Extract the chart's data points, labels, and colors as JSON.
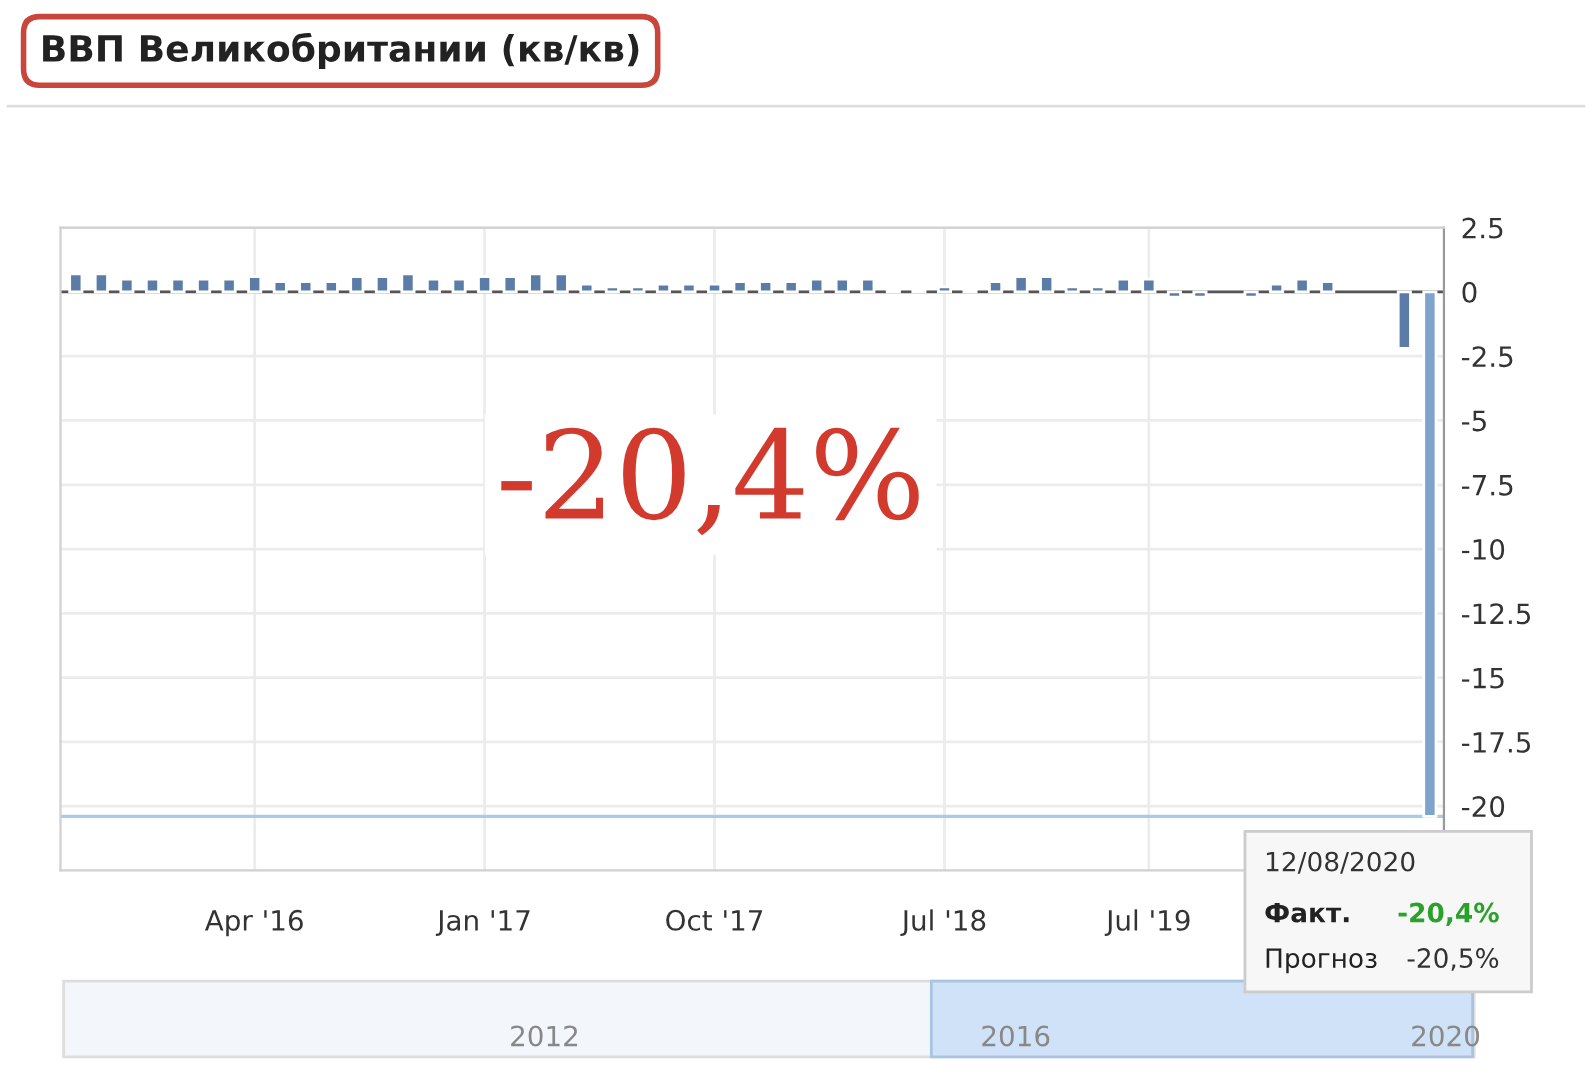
{
  "chart_data": {
    "type": "bar",
    "title": "ВВП Великобритании (кв/кв)",
    "categories": [
      null,
      null,
      null,
      null,
      null,
      null,
      null,
      "Apr '16",
      null,
      null,
      null,
      null,
      null,
      null,
      null,
      null,
      "Jan '17",
      null,
      null,
      null,
      null,
      null,
      null,
      null,
      null,
      "Oct '17",
      null,
      null,
      null,
      null,
      null,
      null,
      null,
      null,
      "Jul '18",
      null,
      null,
      null,
      null,
      null,
      null,
      null,
      "Jul '19",
      null,
      null,
      null,
      null,
      null,
      null,
      null,
      null,
      null,
      null,
      null
    ],
    "values": [
      0.7,
      0.7,
      0.5,
      0.5,
      0.5,
      0.5,
      0.5,
      0.6,
      0.4,
      0.4,
      0.4,
      0.6,
      0.6,
      0.7,
      0.5,
      0.5,
      0.6,
      0.6,
      0.7,
      0.7,
      0.3,
      0.2,
      0.2,
      0.3,
      0.3,
      0.3,
      0.4,
      0.4,
      0.4,
      0.5,
      0.5,
      0.5,
      0.1,
      0.1,
      0.2,
      0.1,
      0.4,
      0.6,
      0.6,
      0.2,
      0.2,
      0.5,
      0.5,
      -0.2,
      -0.2,
      null,
      -0.2,
      0.3,
      0.5,
      0.4,
      null,
      null,
      -2.2,
      -20.4
    ],
    "colors": [
      "#5a7ca6",
      "#5a7ca6",
      "#5a7ca6",
      "#5a7ca6",
      "#5a7ca6",
      "#5a7ca6",
      "#5a7ca6",
      "#5a7ca6",
      "#5a7ca6",
      "#5a7ca6",
      "#5a7ca6",
      "#5a7ca6",
      "#5a7ca6",
      "#5a7ca6",
      "#5a7ca6",
      "#5a7ca6",
      "#5a7ca6",
      "#5a7ca6",
      "#5a7ca6",
      "#5a7ca6",
      "#5a7ca6",
      "#5a7ca6",
      "#5a7ca6",
      "#5a7ca6",
      "#5a7ca6",
      "#5a7ca6",
      "#5a7ca6",
      "#5a7ca6",
      "#5a7ca6",
      "#5a7ca6",
      "#5a7ca6",
      "#5a7ca6",
      "#5a7ca6",
      "#5a7ca6",
      "#5a7ca6",
      "#5a7ca6",
      "#5a7ca6",
      "#5a7ca6",
      "#5a7ca6",
      "#5a7ca6",
      "#5a7ca6",
      "#5a7ca6",
      "#5a7ca6",
      "#5a7ca6",
      "#5a7ca6",
      "#5a7ca6",
      "#5a7ca6",
      "#5a7ca6",
      "#5a7ca6",
      "#5a7ca6",
      "#5a7ca6",
      "#5a7ca6",
      "#5a7ca6",
      "#7ea3cc"
    ],
    "ylim": [
      -22.5,
      2.5
    ],
    "yticks": [
      2.5,
      0,
      -2.5,
      -5,
      -7.5,
      -10,
      -12.5,
      -15,
      -17.5,
      -20
    ],
    "grid": true,
    "ref_lines": [
      {
        "axis": "y",
        "value": -20.4,
        "color": "#a9cbe8"
      }
    ],
    "annotations": [
      "-20,4%",
      "12/08/2020",
      "Факт.",
      "-20,4%",
      "Прогноз",
      "-20,5%",
      "2012",
      "2016",
      "2020"
    ]
  }
}
